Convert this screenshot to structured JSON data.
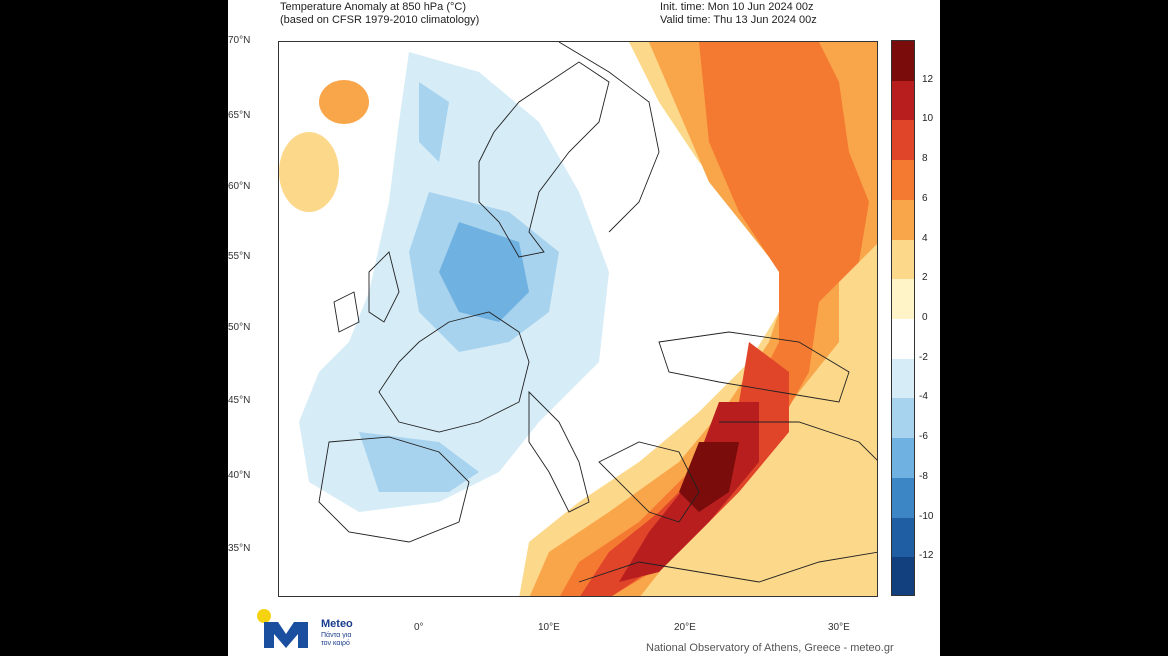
{
  "header": {
    "title_line1": "Temperature Anomaly at 850 hPa (°C)",
    "title_line2": "(based on CFSR 1979-2010 climatology)",
    "init_time": "Init. time: Mon 10 Jun 2024 00z",
    "valid_time": "Valid time: Thu 13 Jun 2024 00z"
  },
  "lat_labels": [
    "70°N",
    "65°N",
    "60°N",
    "55°N",
    "50°N",
    "45°N",
    "40°N",
    "35°N"
  ],
  "lon_labels": [
    "0°",
    "10°E",
    "20°E",
    "30°E"
  ],
  "colorbar": {
    "labels": [
      "12",
      "10",
      "8",
      "6",
      "4",
      "2",
      "0",
      "-2",
      "-4",
      "-6",
      "-8",
      "-10",
      "-12"
    ],
    "colors": [
      "#7a0c0c",
      "#b81e1e",
      "#e0452a",
      "#f47a32",
      "#f9a64a",
      "#fcd88a",
      "#fff3c8",
      "#ffffff",
      "#d6ecf7",
      "#a8d3ef",
      "#6fb1e0",
      "#3d86c6",
      "#1f5ea3",
      "#123f7d"
    ]
  },
  "logo": {
    "name": "Meteo",
    "tagline1": "Πάντα για",
    "tagline2": "τον καιρό"
  },
  "footer": "National Observatory of Athens, Greece - meteo.gr"
}
